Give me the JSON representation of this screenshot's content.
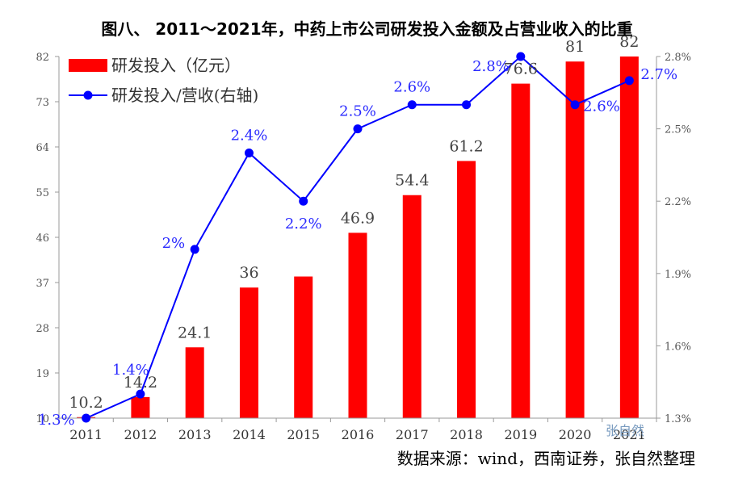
{
  "title": "图八、 2011～2021年，中药上市公司研发投入金额及占营业收入的比重",
  "source": "数据来源：wind，西南证券，张自然整理",
  "watermark": "张自然",
  "colors": {
    "bar": "#ff0000",
    "line": "#0000ff",
    "axis": "#999999"
  },
  "chart_data": {
    "type": "bar",
    "categories": [
      "2011",
      "2012",
      "2013",
      "2014",
      "2015",
      "2016",
      "2017",
      "2018",
      "2019",
      "2020",
      "2021"
    ],
    "series": [
      {
        "name": "研发投入（亿元）",
        "type": "bar",
        "axis": "left",
        "values": [
          10.2,
          14.2,
          24.1,
          36,
          38.2,
          46.9,
          54.4,
          61.2,
          76.6,
          81,
          82
        ],
        "labels": [
          "10.2",
          "14.2",
          "24.1",
          "36",
          "",
          "46.9",
          "54.4",
          "61.2",
          "76.6",
          "81",
          "82"
        ]
      },
      {
        "name": "研发投入/营收(右轴)",
        "type": "line",
        "axis": "right",
        "values": [
          1.3,
          1.4,
          2.0,
          2.4,
          2.2,
          2.5,
          2.6,
          2.6,
          2.8,
          2.6,
          2.7
        ],
        "labels": [
          "1.3%",
          "1.4%",
          "2%",
          "2.4%",
          "2.2%",
          "2.5%",
          "2.6%",
          "",
          "2.8%",
          "2.6%",
          "2.7%"
        ]
      }
    ],
    "left_axis": {
      "ylim": [
        10,
        82
      ],
      "ticks": [
        10,
        19,
        28,
        37,
        46,
        55,
        64,
        73,
        82
      ]
    },
    "right_axis": {
      "ylim": [
        1.3,
        2.8
      ],
      "ticks": [
        "1.3%",
        "1.6%",
        "1.9%",
        "2.2%",
        "2.5%",
        "2.8%"
      ]
    },
    "legend_position": "top-left",
    "grid": false
  }
}
